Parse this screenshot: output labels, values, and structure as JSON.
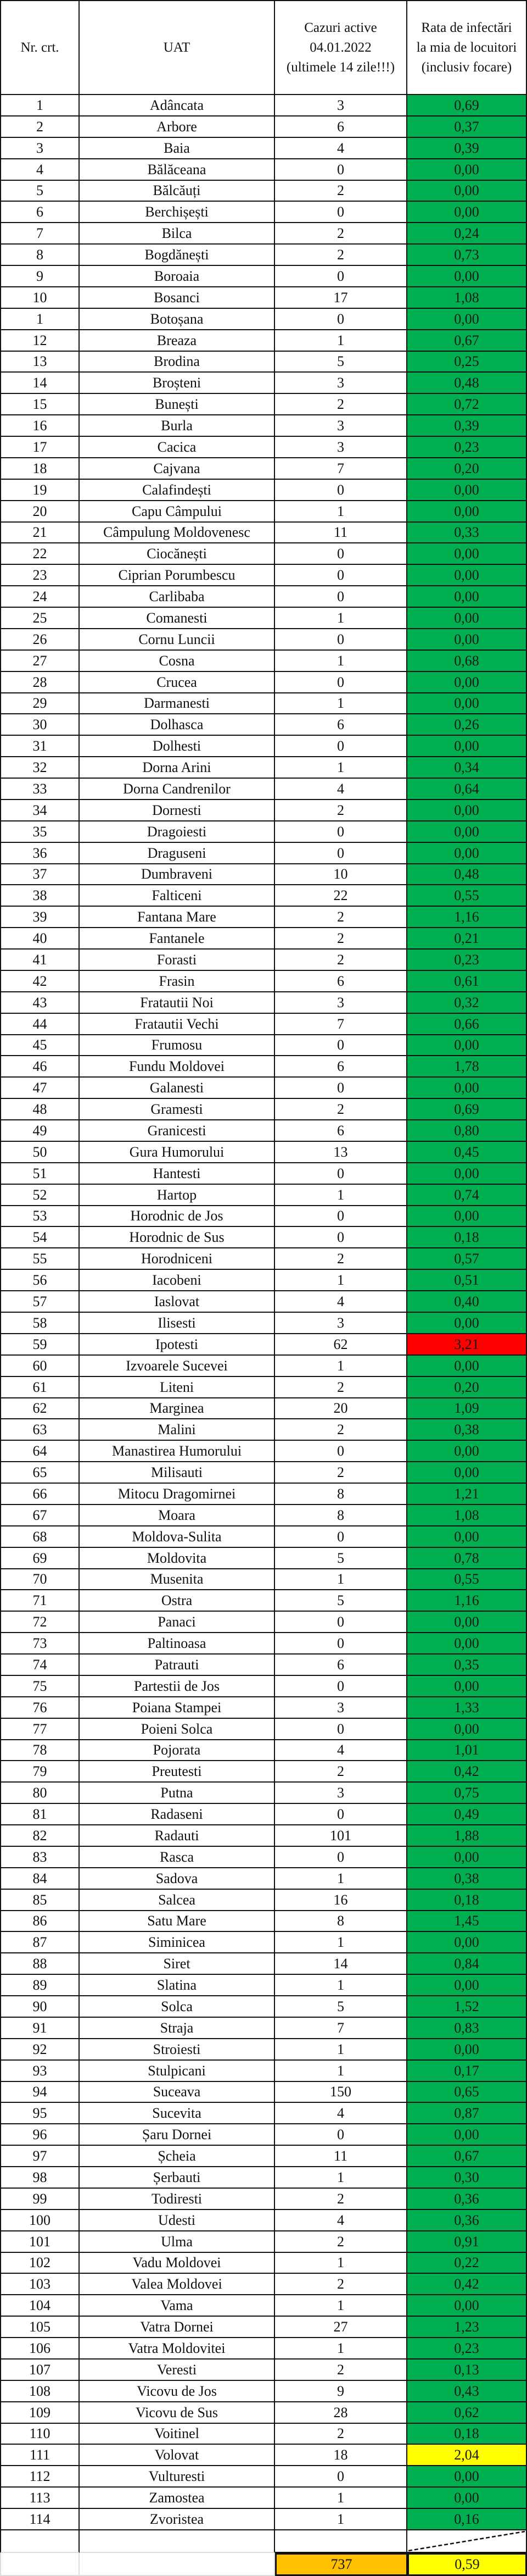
{
  "header": {
    "nr": "Nr. crt.",
    "uat": "UAT",
    "cases": [
      "Cazuri active",
      "04.01.2022",
      "(ultimele 14 zile!!!)"
    ],
    "rate": [
      "Rata de infectări",
      "la mia de locuitori",
      "(inclusiv focare)"
    ]
  },
  "colors": {
    "green": "#00B050",
    "yellow": "#FFFF00",
    "red": "#FF0000",
    "orange": "#FFC000"
  },
  "rows": [
    {
      "nr": "1",
      "uat": "Adâncata",
      "cases": "3",
      "rate": "0,69",
      "highlight": "green"
    },
    {
      "nr": "2",
      "uat": "Arbore",
      "cases": "6",
      "rate": "0,37",
      "highlight": "green"
    },
    {
      "nr": "3",
      "uat": "Baia",
      "cases": "4",
      "rate": "0,39",
      "highlight": "green"
    },
    {
      "nr": "4",
      "uat": "Bălăceana",
      "cases": "0",
      "rate": "0,00",
      "highlight": "green"
    },
    {
      "nr": "5",
      "uat": "Bălcăuți",
      "cases": "2",
      "rate": "0,00",
      "highlight": "green"
    },
    {
      "nr": "6",
      "uat": "Berchișești",
      "cases": "0",
      "rate": "0,00",
      "highlight": "green"
    },
    {
      "nr": "7",
      "uat": "Bilca",
      "cases": "2",
      "rate": "0,24",
      "highlight": "green"
    },
    {
      "nr": "8",
      "uat": "Bogdănești",
      "cases": "2",
      "rate": "0,73",
      "highlight": "green"
    },
    {
      "nr": "9",
      "uat": "Boroaia",
      "cases": "0",
      "rate": "0,00",
      "highlight": "green"
    },
    {
      "nr": "10",
      "uat": "Bosanci",
      "cases": "17",
      "rate": "1,08",
      "highlight": "green"
    },
    {
      "nr": "1",
      "uat": "Botoșana",
      "cases": "0",
      "rate": "0,00",
      "highlight": "green"
    },
    {
      "nr": "12",
      "uat": "Breaza",
      "cases": "1",
      "rate": "0,67",
      "highlight": "green"
    },
    {
      "nr": "13",
      "uat": "Brodina",
      "cases": "5",
      "rate": "0,25",
      "highlight": "green"
    },
    {
      "nr": "14",
      "uat": "Broșteni",
      "cases": "3",
      "rate": "0,48",
      "highlight": "green"
    },
    {
      "nr": "15",
      "uat": "Bunești",
      "cases": "2",
      "rate": "0,72",
      "highlight": "green"
    },
    {
      "nr": "16",
      "uat": "Burla",
      "cases": "3",
      "rate": "0,39",
      "highlight": "green"
    },
    {
      "nr": "17",
      "uat": "Cacica",
      "cases": "3",
      "rate": "0,23",
      "highlight": "green"
    },
    {
      "nr": "18",
      "uat": "Cajvana",
      "cases": "7",
      "rate": "0,20",
      "highlight": "green"
    },
    {
      "nr": "19",
      "uat": "Calafindești",
      "cases": "0",
      "rate": "0,00",
      "highlight": "green"
    },
    {
      "nr": "20",
      "uat": "Capu Câmpului",
      "cases": "1",
      "rate": "0,00",
      "highlight": "green"
    },
    {
      "nr": "21",
      "uat": "Câmpulung Moldovenesc",
      "cases": "11",
      "rate": "0,33",
      "highlight": "green"
    },
    {
      "nr": "22",
      "uat": "Ciocănești",
      "cases": "0",
      "rate": "0,00",
      "highlight": "green"
    },
    {
      "nr": "23",
      "uat": "Ciprian Porumbescu",
      "cases": "0",
      "rate": "0,00",
      "highlight": "green"
    },
    {
      "nr": "24",
      "uat": "Carlibaba",
      "cases": "0",
      "rate": "0,00",
      "highlight": "green"
    },
    {
      "nr": "25",
      "uat": "Comanesti",
      "cases": "1",
      "rate": "0,00",
      "highlight": "green"
    },
    {
      "nr": "26",
      "uat": "Cornu Luncii",
      "cases": "0",
      "rate": "0,00",
      "highlight": "green"
    },
    {
      "nr": "27",
      "uat": "Cosna",
      "cases": "1",
      "rate": "0,68",
      "highlight": "green"
    },
    {
      "nr": "28",
      "uat": "Crucea",
      "cases": "0",
      "rate": "0,00",
      "highlight": "green"
    },
    {
      "nr": "29",
      "uat": "Darmanesti",
      "cases": "1",
      "rate": "0,00",
      "highlight": "green"
    },
    {
      "nr": "30",
      "uat": "Dolhasca",
      "cases": "6",
      "rate": "0,26",
      "highlight": "green"
    },
    {
      "nr": "31",
      "uat": "Dolhesti",
      "cases": "0",
      "rate": "0,00",
      "highlight": "green"
    },
    {
      "nr": "32",
      "uat": "Dorna Arini",
      "cases": "1",
      "rate": "0,34",
      "highlight": "green"
    },
    {
      "nr": "33",
      "uat": "Dorna Candrenilor",
      "cases": "4",
      "rate": "0,64",
      "highlight": "green"
    },
    {
      "nr": "34",
      "uat": "Dornesti",
      "cases": "2",
      "rate": "0,00",
      "highlight": "green"
    },
    {
      "nr": "35",
      "uat": "Dragoiesti",
      "cases": "0",
      "rate": "0,00",
      "highlight": "green"
    },
    {
      "nr": "36",
      "uat": "Draguseni",
      "cases": "0",
      "rate": "0,00",
      "highlight": "green"
    },
    {
      "nr": "37",
      "uat": "Dumbraveni",
      "cases": "10",
      "rate": "0,48",
      "highlight": "green"
    },
    {
      "nr": "38",
      "uat": "Falticeni",
      "cases": "22",
      "rate": "0,55",
      "highlight": "green"
    },
    {
      "nr": "39",
      "uat": "Fantana Mare",
      "cases": "2",
      "rate": "1,16",
      "highlight": "green"
    },
    {
      "nr": "40",
      "uat": "Fantanele",
      "cases": "2",
      "rate": "0,21",
      "highlight": "green"
    },
    {
      "nr": "41",
      "uat": "Forasti",
      "cases": "2",
      "rate": "0,23",
      "highlight": "green"
    },
    {
      "nr": "42",
      "uat": "Frasin",
      "cases": "6",
      "rate": "0,61",
      "highlight": "green"
    },
    {
      "nr": "43",
      "uat": "Fratautii Noi",
      "cases": "3",
      "rate": "0,32",
      "highlight": "green"
    },
    {
      "nr": "44",
      "uat": "Fratautii Vechi",
      "cases": "7",
      "rate": "0,66",
      "highlight": "green"
    },
    {
      "nr": "45",
      "uat": "Frumosu",
      "cases": "0",
      "rate": "0,00",
      "highlight": "green"
    },
    {
      "nr": "46",
      "uat": "Fundu Moldovei",
      "cases": "6",
      "rate": "1,78",
      "highlight": "green"
    },
    {
      "nr": "47",
      "uat": "Galanesti",
      "cases": "0",
      "rate": "0,00",
      "highlight": "green"
    },
    {
      "nr": "48",
      "uat": "Gramesti",
      "cases": "2",
      "rate": "0,69",
      "highlight": "green"
    },
    {
      "nr": "49",
      "uat": "Granicesti",
      "cases": "6",
      "rate": "0,80",
      "highlight": "green"
    },
    {
      "nr": "50",
      "uat": "Gura Humorului",
      "cases": "13",
      "rate": "0,45",
      "highlight": "green"
    },
    {
      "nr": "51",
      "uat": "Hantesti",
      "cases": "0",
      "rate": "0,00",
      "highlight": "green"
    },
    {
      "nr": "52",
      "uat": "Hartop",
      "cases": "1",
      "rate": "0,74",
      "highlight": "green"
    },
    {
      "nr": "53",
      "uat": "Horodnic de Jos",
      "cases": "0",
      "rate": "0,00",
      "highlight": "green"
    },
    {
      "nr": "54",
      "uat": "Horodnic de Sus",
      "cases": "0",
      "rate": "0,18",
      "highlight": "green"
    },
    {
      "nr": "55",
      "uat": "Horodniceni",
      "cases": "2",
      "rate": "0,57",
      "highlight": "green"
    },
    {
      "nr": "56",
      "uat": "Iacobeni",
      "cases": "1",
      "rate": "0,51",
      "highlight": "green"
    },
    {
      "nr": "57",
      "uat": "Iaslovat",
      "cases": "4",
      "rate": "0,40",
      "highlight": "green"
    },
    {
      "nr": "58",
      "uat": "Ilisesti",
      "cases": "3",
      "rate": "0,00",
      "highlight": "green"
    },
    {
      "nr": "59",
      "uat": "Ipotesti",
      "cases": "62",
      "rate": "3,21",
      "highlight": "red"
    },
    {
      "nr": "60",
      "uat": "Izvoarele Sucevei",
      "cases": "1",
      "rate": "0,00",
      "highlight": "green"
    },
    {
      "nr": "61",
      "uat": "Liteni",
      "cases": "2",
      "rate": "0,20",
      "highlight": "green"
    },
    {
      "nr": "62",
      "uat": "Marginea",
      "cases": "20",
      "rate": "1,09",
      "highlight": "green"
    },
    {
      "nr": "63",
      "uat": "Malini",
      "cases": "2",
      "rate": "0,38",
      "highlight": "green"
    },
    {
      "nr": "64",
      "uat": "Manastirea Humorului",
      "cases": "0",
      "rate": "0,00",
      "highlight": "green"
    },
    {
      "nr": "65",
      "uat": "Milisauti",
      "cases": "2",
      "rate": "0,00",
      "highlight": "green"
    },
    {
      "nr": "66",
      "uat": "Mitocu Dragomirnei",
      "cases": "8",
      "rate": "1,21",
      "highlight": "green"
    },
    {
      "nr": "67",
      "uat": "Moara",
      "cases": "8",
      "rate": "1,08",
      "highlight": "green"
    },
    {
      "nr": "68",
      "uat": "Moldova-Sulita",
      "cases": "0",
      "rate": "0,00",
      "highlight": "green"
    },
    {
      "nr": "69",
      "uat": "Moldovita",
      "cases": "5",
      "rate": "0,78",
      "highlight": "green"
    },
    {
      "nr": "70",
      "uat": "Musenita",
      "cases": "1",
      "rate": "0,55",
      "highlight": "green"
    },
    {
      "nr": "71",
      "uat": "Ostra",
      "cases": "5",
      "rate": "1,16",
      "highlight": "green"
    },
    {
      "nr": "72",
      "uat": "Panaci",
      "cases": "0",
      "rate": "0,00",
      "highlight": "green"
    },
    {
      "nr": "73",
      "uat": "Paltinoasa",
      "cases": "0",
      "rate": "0,00",
      "highlight": "green"
    },
    {
      "nr": "74",
      "uat": "Patrauti",
      "cases": "6",
      "rate": "0,35",
      "highlight": "green"
    },
    {
      "nr": "75",
      "uat": "Partestii de Jos",
      "cases": "0",
      "rate": "0,00",
      "highlight": "green"
    },
    {
      "nr": "76",
      "uat": "Poiana Stampei",
      "cases": "3",
      "rate": "1,33",
      "highlight": "green"
    },
    {
      "nr": "77",
      "uat": "Poieni Solca",
      "cases": "0",
      "rate": "0,00",
      "highlight": "green"
    },
    {
      "nr": "78",
      "uat": "Pojorata",
      "cases": "4",
      "rate": "1,01",
      "highlight": "green"
    },
    {
      "nr": "79",
      "uat": "Preutesti",
      "cases": "2",
      "rate": "0,42",
      "highlight": "green"
    },
    {
      "nr": "80",
      "uat": "Putna",
      "cases": "3",
      "rate": "0,75",
      "highlight": "green"
    },
    {
      "nr": "81",
      "uat": "Radaseni",
      "cases": "0",
      "rate": "0,49",
      "highlight": "green"
    },
    {
      "nr": "82",
      "uat": "Radauti",
      "cases": "101",
      "rate": "1,88",
      "highlight": "green"
    },
    {
      "nr": "83",
      "uat": "Rasca",
      "cases": "0",
      "rate": "0,00",
      "highlight": "green"
    },
    {
      "nr": "84",
      "uat": "Sadova",
      "cases": "1",
      "rate": "0,38",
      "highlight": "green"
    },
    {
      "nr": "85",
      "uat": "Salcea",
      "cases": "16",
      "rate": "0,18",
      "highlight": "green"
    },
    {
      "nr": "86",
      "uat": "Satu Mare",
      "cases": "8",
      "rate": "1,45",
      "highlight": "green"
    },
    {
      "nr": "87",
      "uat": "Siminicea",
      "cases": "1",
      "rate": "0,00",
      "highlight": "green"
    },
    {
      "nr": "88",
      "uat": "Siret",
      "cases": "14",
      "rate": "0,84",
      "highlight": "green"
    },
    {
      "nr": "89",
      "uat": "Slatina",
      "cases": "1",
      "rate": "0,00",
      "highlight": "green"
    },
    {
      "nr": "90",
      "uat": "Solca",
      "cases": "5",
      "rate": "1,52",
      "highlight": "green"
    },
    {
      "nr": "91",
      "uat": "Straja",
      "cases": "7",
      "rate": "0,83",
      "highlight": "green"
    },
    {
      "nr": "92",
      "uat": "Stroiesti",
      "cases": "1",
      "rate": "0,00",
      "highlight": "green"
    },
    {
      "nr": "93",
      "uat": "Stulpicani",
      "cases": "1",
      "rate": "0,17",
      "highlight": "green"
    },
    {
      "nr": "94",
      "uat": "Suceava",
      "cases": "150",
      "rate": "0,65",
      "highlight": "green"
    },
    {
      "nr": "95",
      "uat": "Sucevita",
      "cases": "4",
      "rate": "0,87",
      "highlight": "green"
    },
    {
      "nr": "96",
      "uat": "Șaru Dornei",
      "cases": "0",
      "rate": "0,00",
      "highlight": "green"
    },
    {
      "nr": "97",
      "uat": "Șcheia",
      "cases": "11",
      "rate": "0,67",
      "highlight": "green"
    },
    {
      "nr": "98",
      "uat": "Șerbauti",
      "cases": "1",
      "rate": "0,30",
      "highlight": "green"
    },
    {
      "nr": "99",
      "uat": "Todiresti",
      "cases": "2",
      "rate": "0,36",
      "highlight": "green"
    },
    {
      "nr": "100",
      "uat": "Udesti",
      "cases": "4",
      "rate": "0,36",
      "highlight": "green"
    },
    {
      "nr": "101",
      "uat": "Ulma",
      "cases": "2",
      "rate": "0,91",
      "highlight": "green"
    },
    {
      "nr": "102",
      "uat": "Vadu Moldovei",
      "cases": "1",
      "rate": "0,22",
      "highlight": "green"
    },
    {
      "nr": "103",
      "uat": "Valea Moldovei",
      "cases": "2",
      "rate": "0,42",
      "highlight": "green"
    },
    {
      "nr": "104",
      "uat": "Vama",
      "cases": "1",
      "rate": "0,00",
      "highlight": "green"
    },
    {
      "nr": "105",
      "uat": "Vatra Dornei",
      "cases": "27",
      "rate": "1,23",
      "highlight": "green"
    },
    {
      "nr": "106",
      "uat": "Vatra Moldovitei",
      "cases": "1",
      "rate": "0,23",
      "highlight": "green"
    },
    {
      "nr": "107",
      "uat": "Veresti",
      "cases": "2",
      "rate": "0,13",
      "highlight": "green"
    },
    {
      "nr": "108",
      "uat": "Vicovu de Jos",
      "cases": "9",
      "rate": "0,43",
      "highlight": "green"
    },
    {
      "nr": "109",
      "uat": "Vicovu de Sus",
      "cases": "28",
      "rate": "0,62",
      "highlight": "green"
    },
    {
      "nr": "110",
      "uat": "Voitinel",
      "cases": "2",
      "rate": "0,18",
      "highlight": "green"
    },
    {
      "nr": "111",
      "uat": "Volovat",
      "cases": "18",
      "rate": "2,04",
      "highlight": "yellow"
    },
    {
      "nr": "112",
      "uat": "Vulturesti",
      "cases": "0",
      "rate": "0,00",
      "highlight": "green"
    },
    {
      "nr": "113",
      "uat": "Zamostea",
      "cases": "1",
      "rate": "0,00",
      "highlight": "green"
    },
    {
      "nr": "114",
      "uat": "Zvoristea",
      "cases": "1",
      "rate": "0,16",
      "highlight": "green"
    }
  ],
  "total": {
    "cases": "737",
    "rate": "0,59"
  }
}
